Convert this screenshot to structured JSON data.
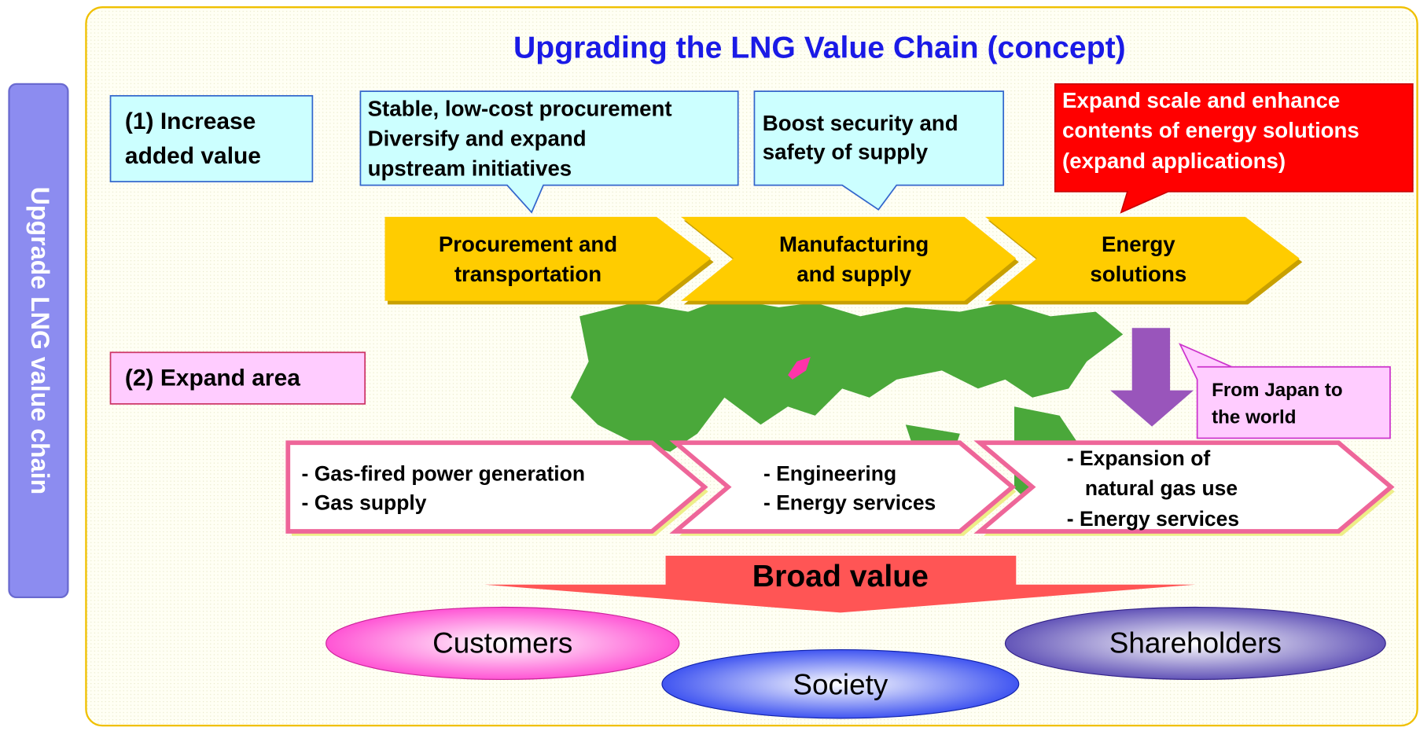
{
  "side_label": "Upgrade LNG value chain",
  "title": "Upgrading the LNG Value Chain (concept)",
  "increase_value": {
    "lines": [
      "(1) Increase",
      "added value"
    ]
  },
  "callouts": [
    {
      "lines": [
        "Stable, low-cost procurement",
        "Diversify and expand",
        "upstream initiatives"
      ]
    },
    {
      "lines": [
        "Boost security and",
        "safety of supply"
      ]
    },
    {
      "lines": [
        "Expand scale and enhance",
        "contents of energy solutions",
        "(expand applications)"
      ]
    }
  ],
  "chain": [
    {
      "lines": [
        "Procurement and",
        "transportation"
      ]
    },
    {
      "lines": [
        "Manufacturing",
        "and supply"
      ]
    },
    {
      "lines": [
        "Energy",
        "solutions"
      ]
    }
  ],
  "expand_area": "(2) Expand area",
  "japan_callout": {
    "lines": [
      "From Japan to",
      "the world"
    ]
  },
  "services": [
    {
      "lines": [
        "- Gas-fired power generation",
        "- Gas supply"
      ]
    },
    {
      "lines": [
        "- Engineering",
        "- Energy services"
      ]
    },
    {
      "lines": [
        "- Expansion of",
        "natural gas use",
        "- Energy services"
      ]
    }
  ],
  "broad_value": "Broad value",
  "stakeholders": [
    "Customers",
    "Society",
    "Shareholders"
  ]
}
